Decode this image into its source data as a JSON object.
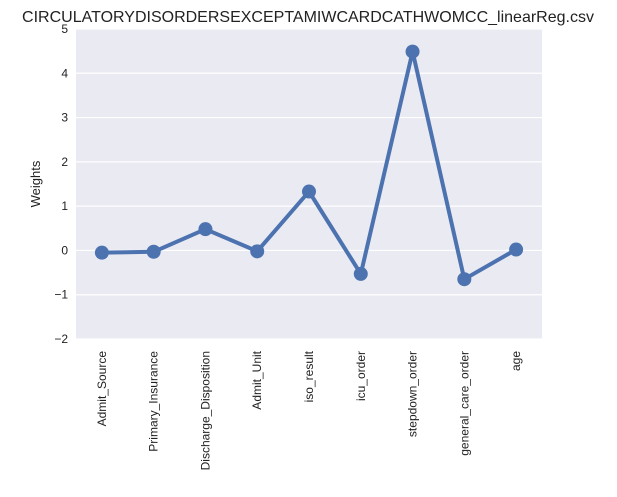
{
  "chart_data": {
    "type": "line",
    "title": "CIRCULATORYDISORDERSEXCEPTAMIWCARDCATHWOMCC_linearReg.csv",
    "xlabel": "",
    "ylabel": "Weights",
    "categories": [
      "Admit_Source",
      "Primary_Insurance",
      "Discharge_Disposition",
      "Admit_Unit",
      "iso_result",
      "icu_order",
      "stepdown_order",
      "general_care_order",
      "age"
    ],
    "values": [
      -0.05,
      -0.03,
      0.48,
      -0.02,
      1.33,
      -0.53,
      4.49,
      -0.65,
      0.02
    ],
    "ylim": [
      -2,
      5
    ],
    "yticks": [
      5,
      4,
      3,
      2,
      1,
      0,
      -1,
      -2
    ],
    "ytick_labels": [
      "5",
      "4",
      "3",
      "2",
      "1",
      "0",
      "−1",
      "−2"
    ],
    "grid": true,
    "legend": "none",
    "colors": {
      "series": "#4c72b0",
      "plot_background": "#eaeaf2",
      "grid": "#ffffff"
    }
  }
}
